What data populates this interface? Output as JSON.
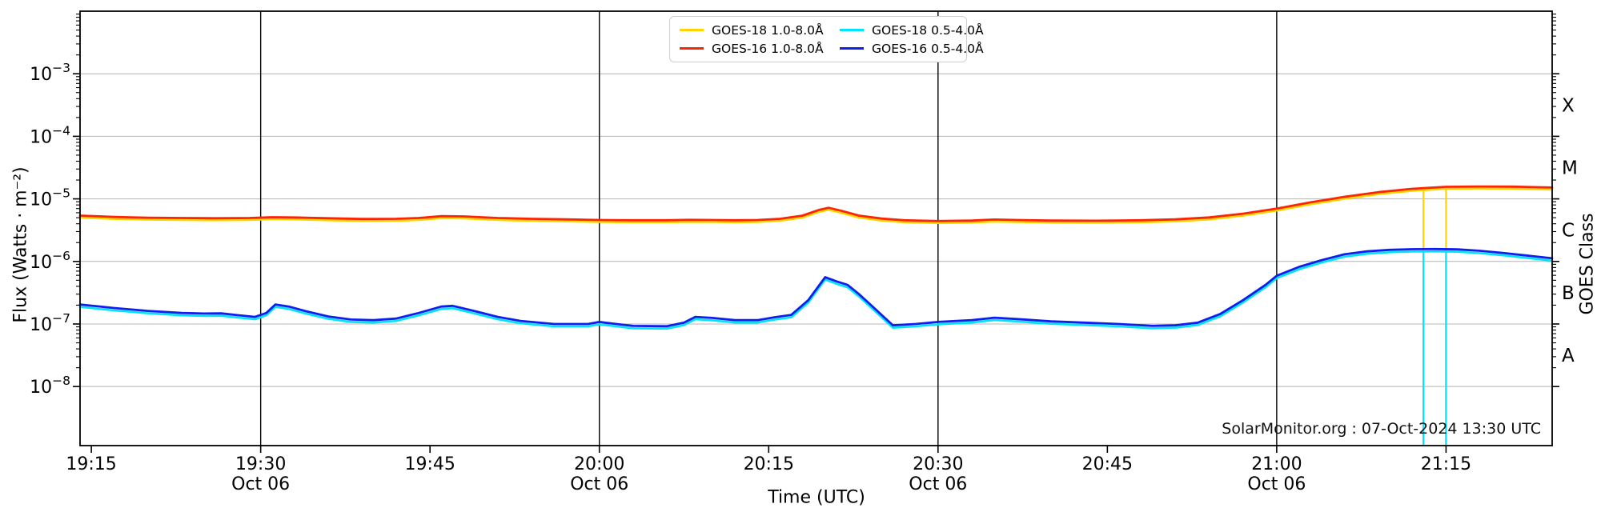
{
  "figure": {
    "watermark": "SolarMonitor.org : 07-Oct-2024 13:30 UTC",
    "xlabel": "Time (UTC)",
    "ylabel": "Flux (Watts · m⁻²)",
    "ylabel_right": "GOES Class"
  },
  "legend": {
    "items": [
      {
        "label": "GOES-18 1.0-8.0Å",
        "color": "#ffd400"
      },
      {
        "label": "GOES-18 0.5-4.0Å",
        "color": "#00e5ff"
      },
      {
        "label": "GOES-16 1.0-8.0Å",
        "color": "#fb2505"
      },
      {
        "label": "GOES-16 0.5-4.0Å",
        "color": "#0d1ff0"
      }
    ]
  },
  "chart_data": {
    "type": "line",
    "title": "",
    "xlabel": "Time (UTC)",
    "ylabel": "Flux (Watts · m⁻²)",
    "ylabel_right": "GOES Class",
    "grid": "horizontal-decades-plus-halfhour-vlines",
    "legend_position": "top-center",
    "x_axis": {
      "unit": "UTC time, minutes after 19:15 on Oct 06",
      "range_minutes": [
        -1,
        129.4
      ],
      "tick_minutes": [
        0,
        15,
        30,
        45,
        60,
        75,
        90,
        105,
        120
      ],
      "tick_labels": [
        "19:15",
        "19:30",
        "19:45",
        "20:00",
        "20:15",
        "20:30",
        "20:45",
        "21:00",
        "21:15"
      ],
      "date_label": "Oct 06",
      "date_label_minutes": [
        15,
        45,
        75,
        105
      ],
      "vline_minutes": [
        15,
        45,
        75,
        105
      ]
    },
    "y_axis": {
      "scale": "log",
      "range_log10": [
        -2,
        -8.944
      ],
      "gridline_exponents": [
        -3,
        -4,
        -5,
        -6,
        -7,
        -8
      ],
      "tick_exponents": [
        -3,
        -4,
        -5,
        -6,
        -7,
        -8
      ],
      "tick_label_base": "10",
      "minor_tick_multiples": [
        2,
        3,
        4,
        5,
        6,
        7,
        8,
        9
      ]
    },
    "right_axis": {
      "class_labels": [
        "X",
        "M",
        "C",
        "B",
        "A"
      ],
      "class_mid_exponents": [
        -3.5,
        -4.5,
        -5.5,
        -6.5,
        -7.5
      ]
    },
    "series": [
      {
        "name": "GOES-18 1.0-8.0Å",
        "color": "#ffd400",
        "note": "overlaps GOES-16 1.0-8.0Å trace just below it; visible as vertical dropout spikes to plot bottom",
        "dropout_spike_minutes": [
          118,
          120
        ]
      },
      {
        "name": "GOES-16 1.0-8.0Å",
        "color": "#fb2505",
        "points": [
          [
            -1,
            5.4e-06
          ],
          [
            2,
            5.15e-06
          ],
          [
            5,
            5e-06
          ],
          [
            8,
            4.95e-06
          ],
          [
            11,
            4.9e-06
          ],
          [
            14,
            4.95e-06
          ],
          [
            16,
            5.1e-06
          ],
          [
            18,
            5.05e-06
          ],
          [
            21,
            4.9e-06
          ],
          [
            24,
            4.78e-06
          ],
          [
            27,
            4.8e-06
          ],
          [
            29,
            4.95e-06
          ],
          [
            31,
            5.3e-06
          ],
          [
            33,
            5.25e-06
          ],
          [
            36,
            4.95e-06
          ],
          [
            39,
            4.8e-06
          ],
          [
            42,
            4.7e-06
          ],
          [
            45,
            4.6e-06
          ],
          [
            48,
            4.55e-06
          ],
          [
            51,
            4.55e-06
          ],
          [
            53,
            4.62e-06
          ],
          [
            55,
            4.6e-06
          ],
          [
            57,
            4.55e-06
          ],
          [
            59,
            4.6e-06
          ],
          [
            61,
            4.8e-06
          ],
          [
            63,
            5.4e-06
          ],
          [
            64.5,
            6.7e-06
          ],
          [
            65.3,
            7.2e-06
          ],
          [
            66.5,
            6.4e-06
          ],
          [
            68,
            5.4e-06
          ],
          [
            70,
            4.85e-06
          ],
          [
            72,
            4.55e-06
          ],
          [
            75,
            4.42e-06
          ],
          [
            78,
            4.5e-06
          ],
          [
            80,
            4.68e-06
          ],
          [
            82,
            4.6e-06
          ],
          [
            85,
            4.5e-06
          ],
          [
            89,
            4.48e-06
          ],
          [
            93,
            4.55e-06
          ],
          [
            96,
            4.7e-06
          ],
          [
            99,
            5.05e-06
          ],
          [
            102,
            5.8e-06
          ],
          [
            105,
            7e-06
          ],
          [
            108,
            8.8e-06
          ],
          [
            111,
            1.08e-05
          ],
          [
            114,
            1.28e-05
          ],
          [
            117,
            1.45e-05
          ],
          [
            120,
            1.56e-05
          ],
          [
            123,
            1.58e-05
          ],
          [
            126,
            1.57e-05
          ],
          [
            129.4,
            1.52e-05
          ]
        ]
      },
      {
        "name": "GOES-18 0.5-4.0Å",
        "color": "#00e5ff",
        "note": "overlaps GOES-16 0.5-4.0Å trace just below it; visible as vertical dropout spikes to plot bottom",
        "dropout_spike_minutes": [
          118,
          120
        ]
      },
      {
        "name": "GOES-16 0.5-4.0Å",
        "color": "#0d1ff0",
        "points": [
          [
            -1,
            2.05e-07
          ],
          [
            2,
            1.8e-07
          ],
          [
            5,
            1.62e-07
          ],
          [
            8,
            1.5e-07
          ],
          [
            10,
            1.47e-07
          ],
          [
            11.5,
            1.48e-07
          ],
          [
            13,
            1.38e-07
          ],
          [
            14.5,
            1.3e-07
          ],
          [
            15.5,
            1.5e-07
          ],
          [
            16.3,
            2.05e-07
          ],
          [
            17.5,
            1.9e-07
          ],
          [
            19,
            1.6e-07
          ],
          [
            21,
            1.32e-07
          ],
          [
            23,
            1.18e-07
          ],
          [
            25,
            1.15e-07
          ],
          [
            27,
            1.22e-07
          ],
          [
            29,
            1.5e-07
          ],
          [
            31,
            1.9e-07
          ],
          [
            32,
            1.95e-07
          ],
          [
            34,
            1.6e-07
          ],
          [
            36,
            1.3e-07
          ],
          [
            38,
            1.12e-07
          ],
          [
            41,
            1e-07
          ],
          [
            44,
            1e-07
          ],
          [
            45,
            1.08e-07
          ],
          [
            46.5,
            1e-07
          ],
          [
            48,
            9.3e-08
          ],
          [
            51,
            9.2e-08
          ],
          [
            52.5,
            1.05e-07
          ],
          [
            53.5,
            1.3e-07
          ],
          [
            55,
            1.25e-07
          ],
          [
            57,
            1.15e-07
          ],
          [
            59,
            1.15e-07
          ],
          [
            60.5,
            1.28e-07
          ],
          [
            62,
            1.4e-07
          ],
          [
            63.5,
            2.4e-07
          ],
          [
            65,
            5.6e-07
          ],
          [
            66,
            4.8e-07
          ],
          [
            67,
            4.2e-07
          ],
          [
            68,
            3e-07
          ],
          [
            69.5,
            1.7e-07
          ],
          [
            71,
            9.5e-08
          ],
          [
            73,
            1e-07
          ],
          [
            75,
            1.08e-07
          ],
          [
            78,
            1.15e-07
          ],
          [
            80,
            1.26e-07
          ],
          [
            82,
            1.2e-07
          ],
          [
            85,
            1.1e-07
          ],
          [
            88,
            1.05e-07
          ],
          [
            91,
            1e-07
          ],
          [
            94,
            9.3e-08
          ],
          [
            96,
            9.5e-08
          ],
          [
            98,
            1.05e-07
          ],
          [
            100,
            1.45e-07
          ],
          [
            102,
            2.4e-07
          ],
          [
            104,
            4.2e-07
          ],
          [
            105,
            5.9e-07
          ],
          [
            107,
            8.2e-07
          ],
          [
            109,
            1.05e-06
          ],
          [
            111,
            1.3e-06
          ],
          [
            113,
            1.45e-06
          ],
          [
            115,
            1.53e-06
          ],
          [
            117,
            1.57e-06
          ],
          [
            119,
            1.58e-06
          ],
          [
            121,
            1.56e-06
          ],
          [
            123,
            1.48e-06
          ],
          [
            125,
            1.37e-06
          ],
          [
            127,
            1.25e-06
          ],
          [
            129.4,
            1.12e-06
          ]
        ]
      }
    ]
  }
}
